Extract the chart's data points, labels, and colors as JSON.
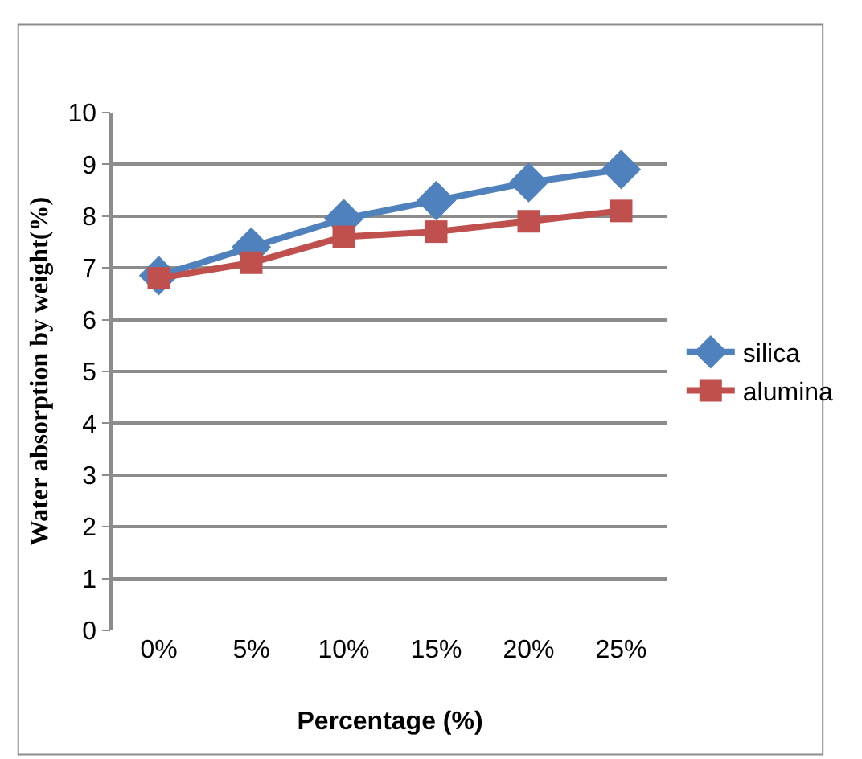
{
  "chart_data": {
    "type": "line",
    "xlabel": "Percentage (%)",
    "ylabel": "Water absorption by weight(%)",
    "categories": [
      "0%",
      "5%",
      "10%",
      "15%",
      "20%",
      "25%"
    ],
    "series": [
      {
        "name": "silica",
        "color": "#4f81bd",
        "marker": "diamond",
        "values": [
          6.85,
          7.4,
          7.95,
          8.3,
          8.65,
          8.9
        ]
      },
      {
        "name": "alumina",
        "color": "#c0504d",
        "marker": "square",
        "values": [
          6.8,
          7.1,
          7.6,
          7.7,
          7.9,
          8.1
        ]
      }
    ],
    "ylim": [
      0,
      10
    ],
    "yticks": [
      0,
      1,
      2,
      3,
      4,
      5,
      6,
      7,
      8,
      9,
      10
    ],
    "grid": "y",
    "legend": "right"
  }
}
